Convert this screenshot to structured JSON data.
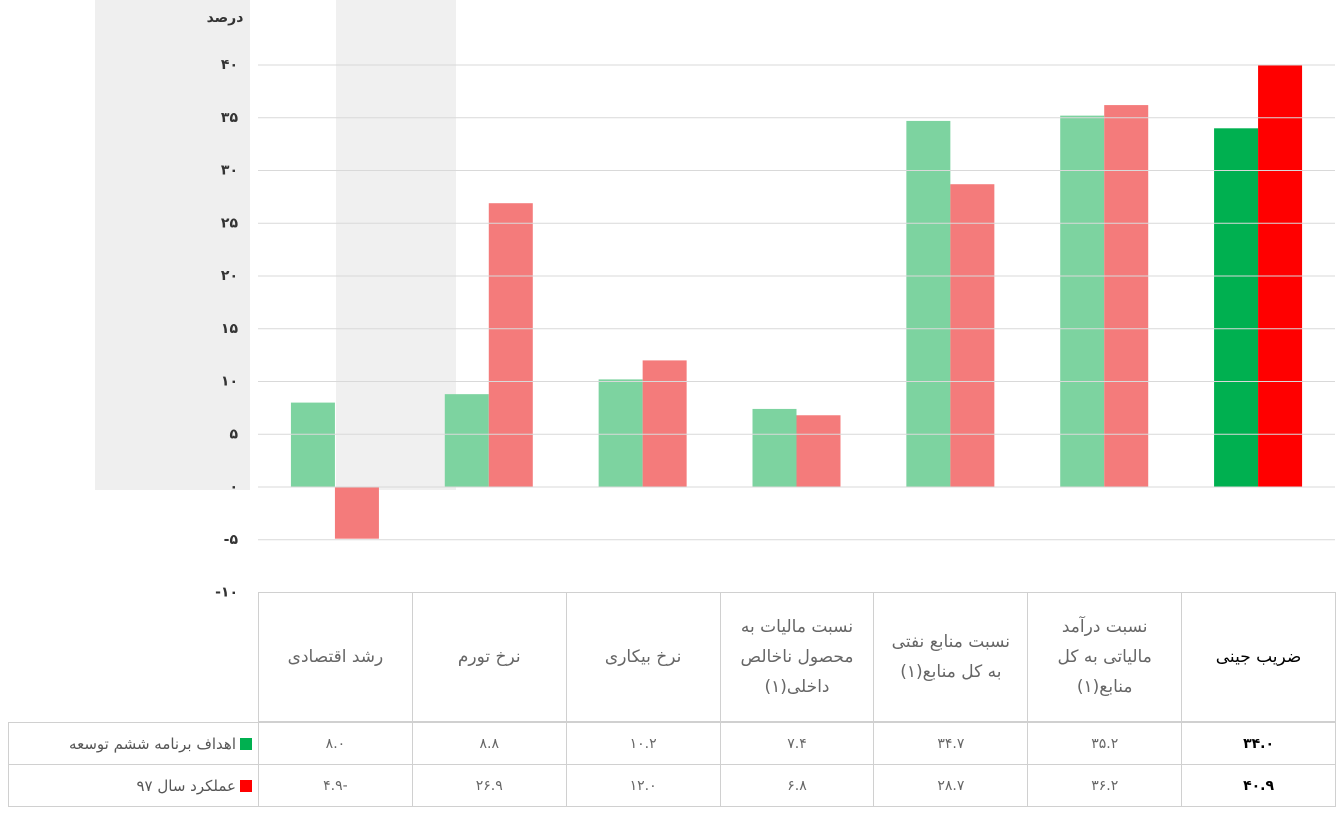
{
  "chart_data": {
    "type": "bar",
    "ylabel": "درصد",
    "categories": [
      "رشد اقتصادی",
      "نرخ تورم",
      "نرخ بیکاری",
      "نسبت مالیات به محصول ناخالص داخلی(۱)",
      "نسبت منابع نفتی به کل منابع(۱)",
      "نسبت درآمد مالیاتی به کل منابع(۱)",
      "ضریب جینی"
    ],
    "series": [
      {
        "name": "اهداف برنامه ششم توسعه",
        "color": "#00b050",
        "colors": [
          "#7dd3a0",
          "#7dd3a0",
          "#7dd3a0",
          "#7dd3a0",
          "#7dd3a0",
          "#7dd3a0",
          "#00b050"
        ],
        "values": [
          8.0,
          8.8,
          10.2,
          7.4,
          34.7,
          35.2,
          34.0
        ],
        "value_labels": [
          "۸.۰",
          "۸.۸",
          "۱۰.۲",
          "۷.۴",
          "۳۴.۷",
          "۳۵.۲",
          "۳۴.۰"
        ]
      },
      {
        "name": "عملکرد سال ۹۷",
        "color": "#ff0000",
        "colors": [
          "#f47b7b",
          "#f47b7b",
          "#f47b7b",
          "#f47b7b",
          "#f47b7b",
          "#f47b7b",
          "#ff0000"
        ],
        "values": [
          -4.9,
          26.9,
          12.0,
          6.8,
          28.7,
          36.2,
          40.9
        ],
        "value_labels": [
          "-۴.۹",
          "۲۶.۹",
          "۱۲.۰",
          "۶.۸",
          "۲۸.۷",
          "۳۶.۲",
          "۴۰.۹"
        ]
      }
    ],
    "ylim": [
      -10,
      40
    ],
    "yticks": [
      {
        "value": -10,
        "label": "-۱۰"
      },
      {
        "value": -5,
        "label": "-۵"
      },
      {
        "value": 0,
        "label": "۰"
      },
      {
        "value": 5,
        "label": "۵"
      },
      {
        "value": 10,
        "label": "۱۰"
      },
      {
        "value": 15,
        "label": "۱۵"
      },
      {
        "value": 20,
        "label": "۲۰"
      },
      {
        "value": 25,
        "label": "۲۵"
      },
      {
        "value": 30,
        "label": "۳۰"
      },
      {
        "value": 35,
        "label": "۳۵"
      },
      {
        "value": 40,
        "label": "۴۰"
      }
    ],
    "grid": true
  }
}
